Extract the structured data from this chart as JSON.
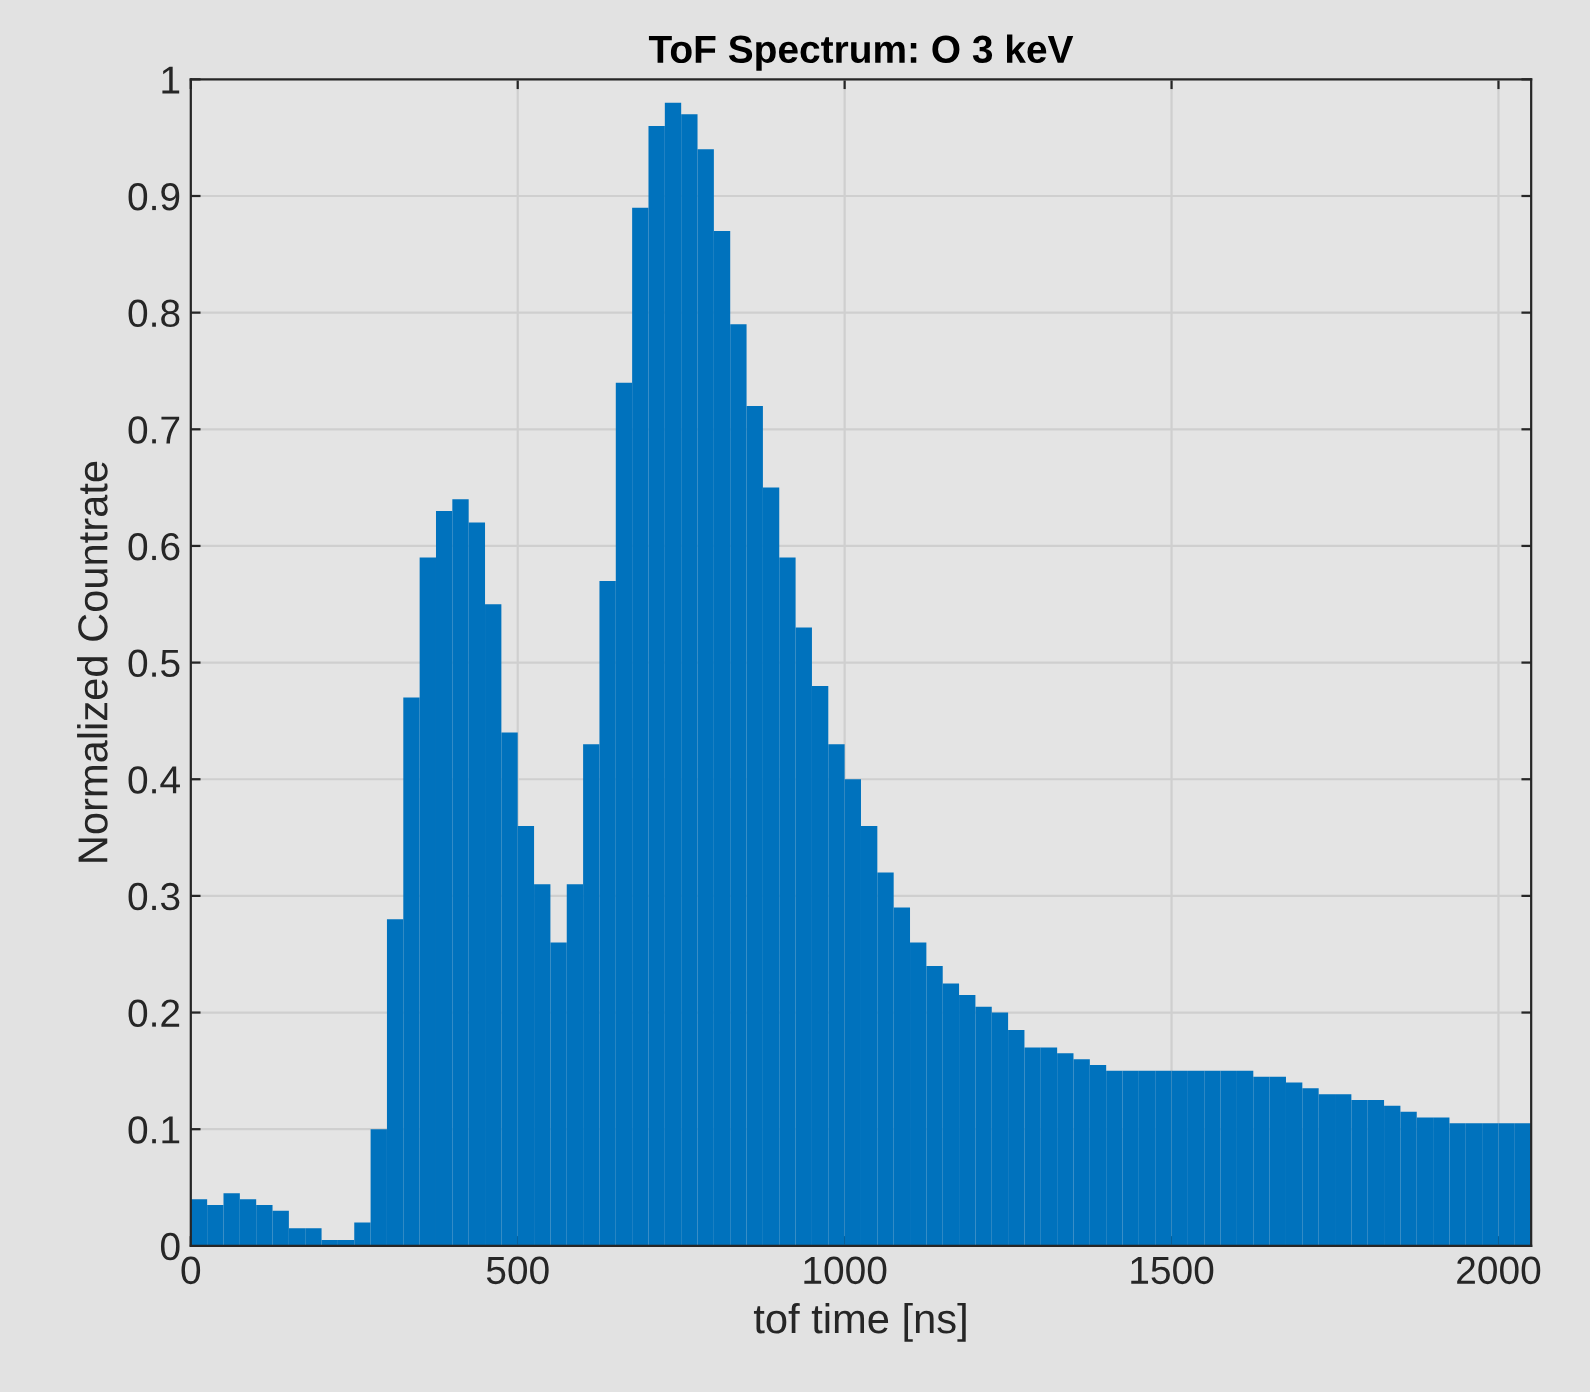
{
  "chart_data": {
    "type": "histogram",
    "title": "ToF Spectrum: O 3 keV",
    "xlabel": "tof time [ns]",
    "ylabel": "Normalized Countrate",
    "bins": [
      0,
      25,
      50,
      75,
      100,
      125,
      150,
      175,
      200,
      225,
      250,
      275,
      300,
      325,
      350,
      375,
      400,
      425,
      450,
      475,
      500,
      525,
      550,
      575,
      600,
      625,
      650,
      675,
      700,
      725,
      750,
      775,
      800,
      825,
      850,
      875,
      900,
      925,
      950,
      975,
      1000,
      1025,
      1050,
      1075,
      1100,
      1125,
      1150,
      1175,
      1200,
      1225,
      1250,
      1275,
      1300,
      1325,
      1350,
      1375,
      1400,
      1425,
      1450,
      1475,
      1500,
      1525,
      1550,
      1575,
      1600,
      1625,
      1650,
      1675,
      1700,
      1725,
      1750,
      1775,
      1800,
      1825,
      1850,
      1875,
      1900,
      1925,
      1950,
      1975,
      2000,
      2025,
      2050
    ],
    "values": [
      0.04,
      0.035,
      0.045,
      0.04,
      0.035,
      0.03,
      0.015,
      0.015,
      0.005,
      0.005,
      0.02,
      0.1,
      0.28,
      0.47,
      0.59,
      0.63,
      0.64,
      0.62,
      0.55,
      0.44,
      0.36,
      0.31,
      0.26,
      0.31,
      0.43,
      0.57,
      0.74,
      0.89,
      0.96,
      0.98,
      0.97,
      0.94,
      0.87,
      0.79,
      0.72,
      0.65,
      0.59,
      0.53,
      0.48,
      0.43,
      0.4,
      0.36,
      0.32,
      0.29,
      0.26,
      0.24,
      0.225,
      0.215,
      0.205,
      0.2,
      0.185,
      0.17,
      0.17,
      0.165,
      0.16,
      0.155,
      0.15,
      0.15,
      0.15,
      0.15,
      0.15,
      0.15,
      0.15,
      0.15,
      0.15,
      0.145,
      0.145,
      0.14,
      0.135,
      0.13,
      0.13,
      0.125,
      0.125,
      0.12,
      0.115,
      0.11,
      0.11,
      0.105,
      0.105,
      0.105,
      0.105,
      0.105
    ],
    "color": "#0072bd",
    "xlim": [
      0,
      2050
    ],
    "xticks": [
      0,
      500,
      1000,
      1500,
      2000
    ],
    "ylim": [
      0,
      1
    ],
    "yticks": [
      0,
      0.1,
      0.2,
      0.3,
      0.4,
      0.5,
      0.6,
      0.7,
      0.8,
      0.9,
      1
    ],
    "grid": true
  }
}
